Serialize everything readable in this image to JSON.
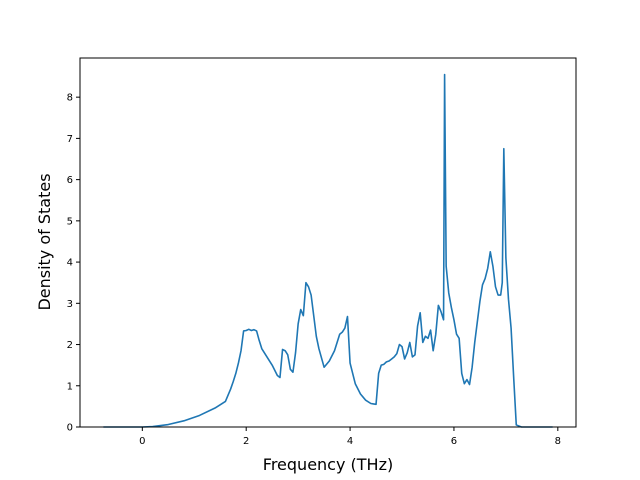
{
  "chart_data": {
    "type": "line",
    "title": "",
    "xlabel": "Frequency (THz)",
    "ylabel": "Density of States",
    "xlim": [
      -1.2,
      8.35
    ],
    "ylim": [
      0,
      8.95
    ],
    "xticks": [
      0,
      2,
      4,
      6,
      8
    ],
    "yticks": [
      0,
      1,
      2,
      3,
      4,
      5,
      6,
      7,
      8
    ],
    "grid": false,
    "legend": "none",
    "line_color": "#1f77b4",
    "series": [
      {
        "x": [
          -0.75,
          0.0,
          0.2,
          0.5,
          0.8,
          1.1,
          1.4,
          1.6,
          1.7,
          1.75,
          1.8,
          1.85,
          1.9,
          1.95,
          2.0,
          2.05,
          2.1,
          2.15,
          2.2,
          2.25,
          2.3,
          2.4,
          2.5,
          2.6,
          2.65,
          2.7,
          2.75,
          2.8,
          2.85,
          2.9,
          2.95,
          3.0,
          3.05,
          3.1,
          3.15,
          3.2,
          3.25,
          3.3,
          3.35,
          3.4,
          3.5,
          3.6,
          3.7,
          3.75,
          3.8,
          3.85,
          3.9,
          3.95,
          4.0,
          4.1,
          4.2,
          4.3,
          4.4,
          4.45,
          4.5,
          4.55,
          4.6,
          4.65,
          4.7,
          4.75,
          4.8,
          4.85,
          4.9,
          4.95,
          5.0,
          5.05,
          5.1,
          5.15,
          5.2,
          5.25,
          5.3,
          5.35,
          5.4,
          5.45,
          5.5,
          5.55,
          5.6,
          5.65,
          5.7,
          5.75,
          5.8,
          5.82,
          5.85,
          5.9,
          5.95,
          6.0,
          6.05,
          6.1,
          6.15,
          6.2,
          6.25,
          6.3,
          6.35,
          6.4,
          6.45,
          6.5,
          6.55,
          6.6,
          6.65,
          6.7,
          6.75,
          6.8,
          6.85,
          6.9,
          6.93,
          6.96,
          7.0,
          7.05,
          7.1,
          7.15,
          7.2,
          7.3,
          7.5,
          7.9
        ],
        "y": [
          0,
          0,
          0.01,
          0.06,
          0.15,
          0.28,
          0.46,
          0.62,
          0.92,
          1.1,
          1.3,
          1.55,
          1.85,
          2.33,
          2.34,
          2.37,
          2.34,
          2.36,
          2.33,
          2.1,
          1.9,
          1.7,
          1.5,
          1.25,
          1.2,
          1.88,
          1.85,
          1.75,
          1.4,
          1.33,
          1.8,
          2.5,
          2.85,
          2.7,
          3.5,
          3.4,
          3.2,
          2.7,
          2.2,
          1.9,
          1.45,
          1.6,
          1.85,
          2.05,
          2.25,
          2.3,
          2.4,
          2.68,
          1.55,
          1.05,
          0.8,
          0.65,
          0.57,
          0.56,
          0.55,
          1.3,
          1.5,
          1.52,
          1.58,
          1.6,
          1.65,
          1.7,
          1.78,
          2.0,
          1.95,
          1.65,
          1.8,
          2.05,
          1.7,
          1.75,
          2.45,
          2.77,
          2.05,
          2.2,
          2.15,
          2.35,
          1.85,
          2.25,
          2.95,
          2.8,
          2.6,
          8.55,
          3.9,
          3.25,
          2.9,
          2.6,
          2.25,
          2.15,
          1.3,
          1.05,
          1.15,
          1.03,
          1.45,
          2.05,
          2.55,
          3.05,
          3.45,
          3.6,
          3.85,
          4.25,
          3.9,
          3.4,
          3.2,
          3.2,
          3.5,
          6.75,
          4.1,
          3.1,
          2.4,
          1.2,
          0.05,
          0,
          0,
          0
        ]
      }
    ]
  }
}
